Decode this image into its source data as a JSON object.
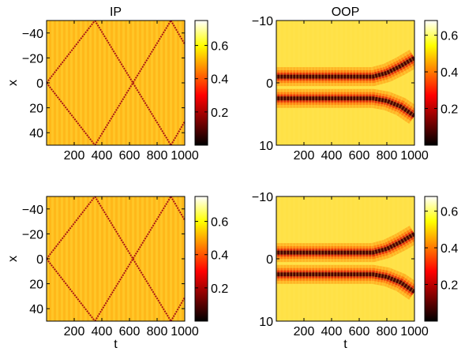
{
  "colormap": [
    "#000000",
    "#800000",
    "#ff0000",
    "#ff8000",
    "#ffff00",
    "#ffffff"
  ],
  "chart_data": [
    {
      "type": "heatmap",
      "title": "IP",
      "xlabel": "",
      "ylabel": "x",
      "xlim": [
        0,
        1000
      ],
      "ylim": [
        -50,
        50
      ],
      "y_reversed": true,
      "xticks": [
        200,
        400,
        600,
        800,
        1000
      ],
      "xtick_labels": [
        "200",
        "400",
        "600",
        "800",
        "1000"
      ],
      "yticks": [
        -40,
        -20,
        0,
        20,
        40
      ],
      "ytick_labels": [
        "−40",
        "−20",
        "0",
        "20",
        "40"
      ],
      "clim": [
        0,
        0.75
      ],
      "colorbar_ticks": [
        0.2,
        0.4,
        0.6
      ],
      "colorbar_tick_labels": [
        "0.2",
        "0.4",
        "0.6"
      ],
      "pattern": "crossing-lines",
      "line_paths": [
        [
          [
            0,
            0
          ],
          [
            350,
            -50
          ]
        ],
        [
          [
            0,
            0
          ],
          [
            350,
            50
          ]
        ],
        [
          [
            350,
            -50
          ],
          [
            900,
            50
          ]
        ],
        [
          [
            350,
            50
          ],
          [
            900,
            -50
          ]
        ],
        [
          [
            900,
            50
          ],
          [
            1000,
            31
          ]
        ],
        [
          [
            900,
            -50
          ],
          [
            1000,
            -31
          ]
        ]
      ]
    },
    {
      "type": "heatmap",
      "title": "OOP",
      "xlabel": "",
      "ylabel": "",
      "xlim": [
        0,
        1000
      ],
      "ylim": [
        -10,
        10
      ],
      "y_reversed": true,
      "xticks": [
        200,
        400,
        600,
        800,
        1000
      ],
      "xtick_labels": [
        "200",
        "400",
        "600",
        "800",
        "1000"
      ],
      "yticks": [
        -10,
        0,
        10
      ],
      "ytick_labels": [
        "−10",
        "0",
        "10"
      ],
      "clim": [
        0,
        0.68
      ],
      "colorbar_ticks": [
        0.2,
        0.4,
        0.6
      ],
      "colorbar_tick_labels": [
        "0.2",
        "0.4",
        "0.6"
      ],
      "pattern": "two-bands",
      "band_paths": [
        [
          [
            0,
            -1
          ],
          [
            700,
            -1
          ],
          [
            800,
            -1.6
          ],
          [
            900,
            -2.7
          ],
          [
            1000,
            -4
          ]
        ],
        [
          [
            0,
            2.5
          ],
          [
            700,
            2.5
          ],
          [
            800,
            2.9
          ],
          [
            900,
            3.8
          ],
          [
            1000,
            5.3
          ]
        ]
      ]
    },
    {
      "type": "heatmap",
      "title": "",
      "xlabel": "t",
      "ylabel": "x",
      "xlim": [
        0,
        1000
      ],
      "ylim": [
        -50,
        50
      ],
      "y_reversed": true,
      "xticks": [
        200,
        400,
        600,
        800,
        1000
      ],
      "xtick_labels": [
        "200",
        "400",
        "600",
        "800",
        "1000"
      ],
      "yticks": [
        -40,
        -20,
        0,
        20,
        40
      ],
      "ytick_labels": [
        "−40",
        "−20",
        "0",
        "20",
        "40"
      ],
      "clim": [
        0,
        0.75
      ],
      "colorbar_ticks": [
        0.2,
        0.4,
        0.6
      ],
      "colorbar_tick_labels": [
        "0.2",
        "0.4",
        "0.6"
      ],
      "pattern": "crossing-lines",
      "line_paths": [
        [
          [
            0,
            0
          ],
          [
            350,
            -50
          ]
        ],
        [
          [
            0,
            0
          ],
          [
            350,
            50
          ]
        ],
        [
          [
            350,
            -50
          ],
          [
            900,
            50
          ]
        ],
        [
          [
            350,
            50
          ],
          [
            900,
            -50
          ]
        ],
        [
          [
            900,
            50
          ],
          [
            1000,
            31
          ]
        ],
        [
          [
            900,
            -50
          ],
          [
            1000,
            -31
          ]
        ]
      ]
    },
    {
      "type": "heatmap",
      "title": "",
      "xlabel": "t",
      "ylabel": "",
      "xlim": [
        0,
        1000
      ],
      "ylim": [
        -10,
        10
      ],
      "y_reversed": true,
      "xticks": [
        200,
        400,
        600,
        800,
        1000
      ],
      "xtick_labels": [
        "200",
        "400",
        "600",
        "800",
        "1000"
      ],
      "yticks": [
        -10,
        0,
        10
      ],
      "ytick_labels": [
        "−10",
        "0",
        "10"
      ],
      "clim": [
        0,
        0.68
      ],
      "colorbar_ticks": [
        0.2,
        0.4,
        0.6
      ],
      "colorbar_tick_labels": [
        "0.2",
        "0.4",
        "0.6"
      ],
      "pattern": "two-bands",
      "band_paths": [
        [
          [
            0,
            -1
          ],
          [
            700,
            -1
          ],
          [
            800,
            -1.6
          ],
          [
            900,
            -2.7
          ],
          [
            1000,
            -4
          ]
        ],
        [
          [
            0,
            2.5
          ],
          [
            700,
            2.5
          ],
          [
            800,
            2.9
          ],
          [
            900,
            3.8
          ],
          [
            1000,
            5.3
          ]
        ]
      ]
    }
  ]
}
